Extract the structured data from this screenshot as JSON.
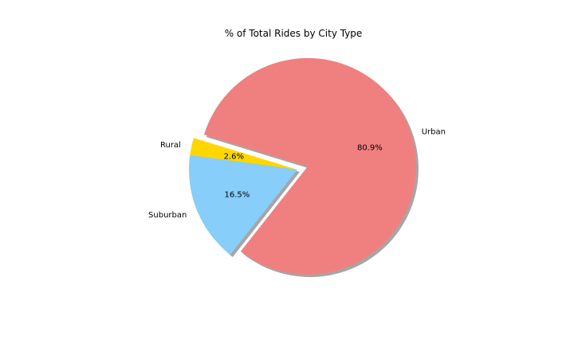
{
  "chart_data": {
    "type": "pie",
    "title": "% of Total Rides by City Type",
    "slices": [
      {
        "label": "Rural",
        "value": 2.6,
        "pct_label": "2.6%",
        "color": "#ffd700",
        "explode": false
      },
      {
        "label": "Suburban",
        "value": 16.5,
        "pct_label": "16.5%",
        "color": "#87cefa",
        "explode": false
      },
      {
        "label": "Urban",
        "value": 80.9,
        "pct_label": "80.9%",
        "color": "#f08080",
        "explode": true
      }
    ],
    "shadow": true,
    "legend": "none"
  }
}
